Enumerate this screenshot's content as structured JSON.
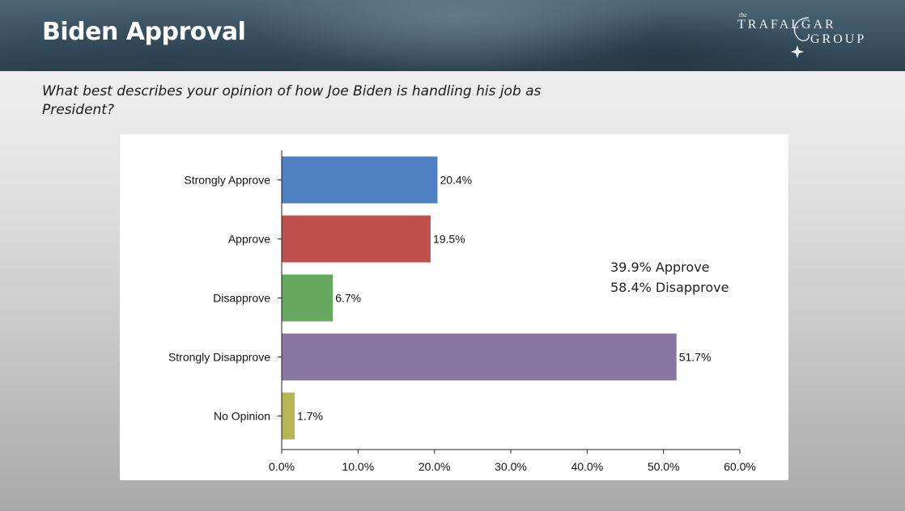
{
  "header": {
    "title": "Biden Approval",
    "logo": {
      "the": "the",
      "line1": "TRAFALGAR",
      "line2": "GROUP"
    }
  },
  "question": "What best describes your opinion of how Joe Biden is handling his job as President?",
  "summary": {
    "approve": "39.9% Approve",
    "disapprove": "58.4% Disapprove"
  },
  "chart_data": {
    "type": "bar",
    "orientation": "horizontal",
    "categories": [
      "Strongly Approve",
      "Approve",
      "Disapprove",
      "Strongly Disapprove",
      "No Opinion"
    ],
    "values": [
      20.4,
      19.5,
      6.7,
      51.7,
      1.7
    ],
    "data_labels": [
      "20.4%",
      "19.5%",
      "6.7%",
      "51.7%",
      "1.7%"
    ],
    "colors": [
      "#4e7fc1",
      "#c0504d",
      "#66a95f",
      "#8875a0",
      "#b5b553"
    ],
    "xlim": [
      0,
      60
    ],
    "xticks": [
      0,
      10,
      20,
      30,
      40,
      50,
      60
    ],
    "xtick_labels": [
      "0.0%",
      "10.0%",
      "20.0%",
      "30.0%",
      "40.0%",
      "50.0%",
      "60.0%"
    ],
    "grid": false,
    "title": "",
    "xlabel": "",
    "ylabel": ""
  }
}
